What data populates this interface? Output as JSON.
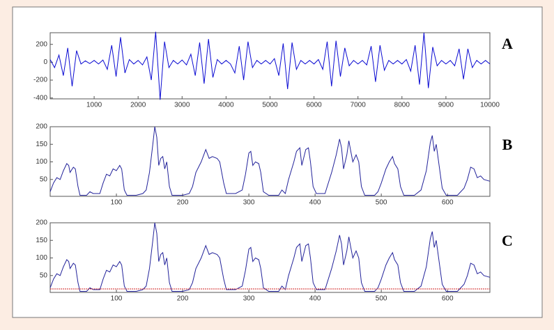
{
  "chart_data": [
    {
      "type": "line",
      "label": "A",
      "color": "#0a0ad2",
      "x": [
        0,
        100,
        200,
        300,
        400,
        500,
        600,
        700,
        800,
        900,
        1000,
        1100,
        1200,
        1300,
        1400,
        1500,
        1600,
        1700,
        1800,
        1900,
        2000,
        2100,
        2200,
        2300,
        2400,
        2500,
        2600,
        2700,
        2800,
        2900,
        3000,
        3100,
        3200,
        3300,
        3400,
        3500,
        3600,
        3700,
        3800,
        3900,
        4000,
        4100,
        4200,
        4300,
        4400,
        4500,
        4600,
        4700,
        4800,
        4900,
        5000,
        5100,
        5200,
        5300,
        5400,
        5500,
        5600,
        5700,
        5800,
        5900,
        6000,
        6100,
        6200,
        6300,
        6400,
        6500,
        6600,
        6700,
        6800,
        6900,
        7000,
        7100,
        7200,
        7300,
        7400,
        7500,
        7600,
        7700,
        7800,
        7900,
        8000,
        8100,
        8200,
        8300,
        8400,
        8500,
        8600,
        8700,
        8800,
        8900,
        9000,
        9100,
        9200,
        9300,
        9400,
        9500,
        9600,
        9700,
        9800,
        9900,
        10000
      ],
      "values": [
        30,
        -60,
        80,
        -150,
        160,
        -270,
        130,
        -20,
        15,
        -15,
        20,
        -20,
        25,
        -80,
        190,
        -160,
        280,
        -120,
        30,
        -20,
        20,
        -30,
        60,
        -200,
        340,
        -420,
        230,
        -60,
        20,
        -20,
        25,
        -30,
        90,
        -150,
        220,
        -240,
        260,
        -170,
        30,
        -20,
        20,
        -20,
        -120,
        180,
        -200,
        230,
        -60,
        20,
        -20,
        20,
        -20,
        40,
        -150,
        210,
        -300,
        220,
        -80,
        20,
        -20,
        20,
        -20,
        30,
        -80,
        230,
        -270,
        240,
        -160,
        160,
        -40,
        20,
        -20,
        20,
        -30,
        180,
        -220,
        190,
        -90,
        20,
        -20,
        20,
        -20,
        30,
        -100,
        190,
        -250,
        330,
        -290,
        170,
        -40,
        20,
        -20,
        20,
        -40,
        150,
        -190,
        150,
        -60,
        20,
        -20,
        20,
        -20
      ],
      "xlim": [
        0,
        10000
      ],
      "ylim": [
        -410,
        330
      ],
      "xticks": [
        1000,
        2000,
        3000,
        4000,
        5000,
        6000,
        7000,
        8000,
        9000,
        10000
      ],
      "yticks": [
        -400,
        -200,
        0,
        200
      ]
    },
    {
      "type": "line",
      "label": "B",
      "color": "#22229a",
      "x": [
        0,
        5,
        10,
        15,
        20,
        25,
        28,
        30,
        35,
        38,
        42,
        45,
        55,
        60,
        65,
        75,
        80,
        85,
        90,
        95,
        100,
        105,
        108,
        112,
        116,
        130,
        140,
        145,
        150,
        155,
        158,
        161,
        164,
        167,
        170,
        173,
        176,
        180,
        184,
        200,
        210,
        215,
        220,
        228,
        235,
        240,
        245,
        252,
        256,
        262,
        266,
        280,
        290,
        295,
        300,
        303,
        306,
        310,
        315,
        318,
        322,
        330,
        345,
        350,
        355,
        360,
        368,
        372,
        377,
        380,
        386,
        390,
        393,
        397,
        402,
        415,
        425,
        432,
        437,
        440,
        443,
        448,
        451,
        454,
        457,
        462,
        466,
        470,
        475,
        490,
        495,
        500,
        507,
        512,
        517,
        520,
        525,
        529,
        534,
        550,
        560,
        568,
        574,
        577,
        580,
        583,
        588,
        592,
        598,
        615,
        625,
        630,
        635,
        640,
        645,
        650,
        655,
        664
      ],
      "values": [
        15,
        40,
        55,
        50,
        75,
        95,
        90,
        70,
        85,
        80,
        30,
        5,
        5,
        15,
        10,
        10,
        40,
        65,
        60,
        80,
        75,
        90,
        80,
        20,
        5,
        5,
        10,
        20,
        70,
        150,
        200,
        170,
        90,
        110,
        115,
        80,
        100,
        30,
        5,
        5,
        10,
        30,
        70,
        100,
        135,
        110,
        115,
        110,
        100,
        40,
        10,
        10,
        20,
        65,
        125,
        130,
        90,
        100,
        95,
        70,
        15,
        5,
        5,
        20,
        10,
        50,
        100,
        130,
        140,
        90,
        135,
        140,
        100,
        30,
        10,
        10,
        70,
        120,
        165,
        140,
        80,
        120,
        160,
        130,
        100,
        120,
        100,
        30,
        5,
        5,
        15,
        40,
        80,
        100,
        115,
        95,
        80,
        30,
        5,
        5,
        20,
        75,
        155,
        175,
        130,
        150,
        80,
        25,
        5,
        5,
        25,
        50,
        85,
        80,
        55,
        60,
        50,
        45
      ],
      "xlim": [
        0,
        664
      ],
      "ylim": [
        2,
        200
      ],
      "xticks": [
        100,
        200,
        300,
        400,
        500,
        600
      ],
      "yticks": [
        50,
        100,
        150,
        200
      ]
    },
    {
      "type": "line",
      "label": "C",
      "color": "#22229a",
      "x": [
        0,
        5,
        10,
        15,
        20,
        25,
        28,
        30,
        35,
        38,
        42,
        45,
        55,
        60,
        65,
        75,
        80,
        85,
        90,
        95,
        100,
        105,
        108,
        112,
        116,
        130,
        140,
        145,
        150,
        155,
        158,
        161,
        164,
        167,
        170,
        173,
        176,
        180,
        184,
        200,
        210,
        215,
        220,
        228,
        235,
        240,
        245,
        252,
        256,
        262,
        266,
        280,
        290,
        295,
        300,
        303,
        306,
        310,
        315,
        318,
        322,
        330,
        345,
        350,
        355,
        360,
        368,
        372,
        377,
        380,
        386,
        390,
        393,
        397,
        402,
        415,
        425,
        432,
        437,
        440,
        443,
        448,
        451,
        454,
        457,
        462,
        466,
        470,
        475,
        490,
        495,
        500,
        507,
        512,
        517,
        520,
        525,
        529,
        534,
        550,
        560,
        568,
        574,
        577,
        580,
        583,
        588,
        592,
        598,
        615,
        625,
        630,
        635,
        640,
        645,
        650,
        655,
        664
      ],
      "values": [
        15,
        40,
        55,
        50,
        75,
        95,
        90,
        70,
        85,
        80,
        30,
        5,
        5,
        15,
        10,
        10,
        40,
        65,
        60,
        80,
        75,
        90,
        80,
        20,
        5,
        5,
        10,
        20,
        70,
        150,
        200,
        170,
        90,
        110,
        115,
        80,
        100,
        30,
        5,
        5,
        10,
        30,
        70,
        100,
        135,
        110,
        115,
        110,
        100,
        40,
        10,
        10,
        20,
        65,
        125,
        130,
        90,
        100,
        95,
        70,
        15,
        5,
        5,
        20,
        10,
        50,
        100,
        130,
        140,
        90,
        135,
        140,
        100,
        30,
        10,
        10,
        70,
        120,
        165,
        140,
        80,
        120,
        160,
        130,
        100,
        120,
        100,
        30,
        5,
        5,
        15,
        40,
        80,
        100,
        115,
        95,
        80,
        30,
        5,
        5,
        20,
        75,
        155,
        175,
        130,
        150,
        80,
        25,
        5,
        5,
        25,
        50,
        85,
        80,
        55,
        60,
        50,
        45
      ],
      "threshold": 12,
      "threshold_color": "#d02020",
      "xlim": [
        0,
        664
      ],
      "ylim": [
        2,
        200
      ],
      "xticks": [
        100,
        200,
        300,
        400,
        500,
        600
      ],
      "yticks": [
        50,
        100,
        150,
        200
      ]
    }
  ]
}
